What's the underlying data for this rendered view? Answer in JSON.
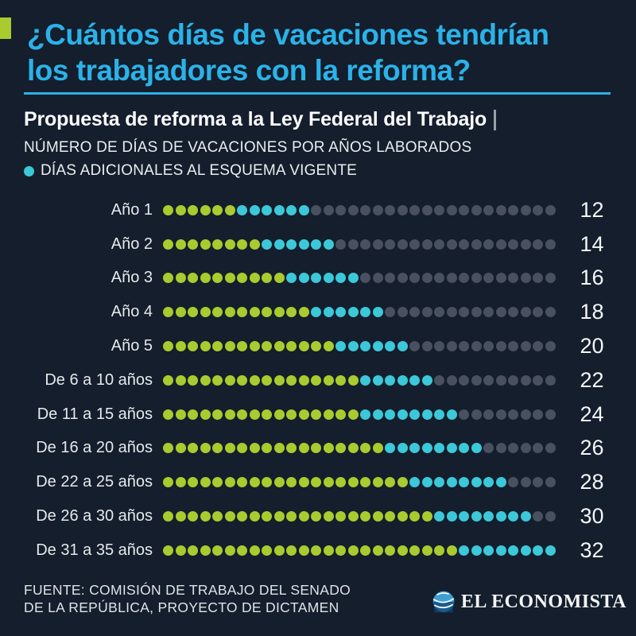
{
  "title": {
    "line1": "¿Cuántos días de vacaciones tendrían",
    "line2": "los trabajadores con la reforma?"
  },
  "subtitle": "Propuesta de reforma a la Ley Federal del Trabajo",
  "kicker": "NÚMERO DE DÍAS DE VACACIONES POR AÑOS LABORADOS",
  "legend": {
    "label": "DÍAS ADICIONALES AL ESQUEMA VIGENTE"
  },
  "colors": {
    "background": "#141e2c",
    "title_cyan": "#2bb2e8",
    "dot_current_green": "#a9cb2f",
    "dot_additional_cyan": "#3cc8d8",
    "dot_empty_gray": "#49505f"
  },
  "chart_data": {
    "type": "dot-matrix",
    "title": "Propuesta de reforma a la Ley Federal del Trabajo",
    "subtitle": "Número de días de vacaciones por años laborados",
    "legend_additional": "Días adicionales al esquema vigente",
    "dots_per_row": 32,
    "series_meaning": {
      "green": "días del esquema vigente",
      "cyan": "días adicionales con la reforma",
      "gray": "relleno hasta 32"
    },
    "rows": [
      {
        "label": "Año 1",
        "current": 6,
        "additional": 6,
        "total": 12
      },
      {
        "label": "Año 2",
        "current": 8,
        "additional": 6,
        "total": 14
      },
      {
        "label": "Año 3",
        "current": 10,
        "additional": 6,
        "total": 16
      },
      {
        "label": "Año 4",
        "current": 12,
        "additional": 6,
        "total": 18
      },
      {
        "label": "Año 5",
        "current": 14,
        "additional": 6,
        "total": 20
      },
      {
        "label": "De 6 a 10 años",
        "current": 16,
        "additional": 6,
        "total": 22
      },
      {
        "label": "De 11 a 15 años",
        "current": 16,
        "additional": 8,
        "total": 24
      },
      {
        "label": "De 16 a 20 años",
        "current": 18,
        "additional": 8,
        "total": 26
      },
      {
        "label": "De 22 a 25 años",
        "current": 20,
        "additional": 8,
        "total": 28
      },
      {
        "label": "De 26 a 30 años",
        "current": 22,
        "additional": 8,
        "total": 30
      },
      {
        "label": "De 31 a 35 años",
        "current": 24,
        "additional": 8,
        "total": 32
      }
    ]
  },
  "footer": {
    "source_line1": "FUENTE: COMISIÓN DE TRABAJO DEL SENADO",
    "source_line2": "DE LA REPÚBLICA, PROYECTO DE DICTAMEN",
    "logo_text": "EL ECONOMISTA"
  }
}
